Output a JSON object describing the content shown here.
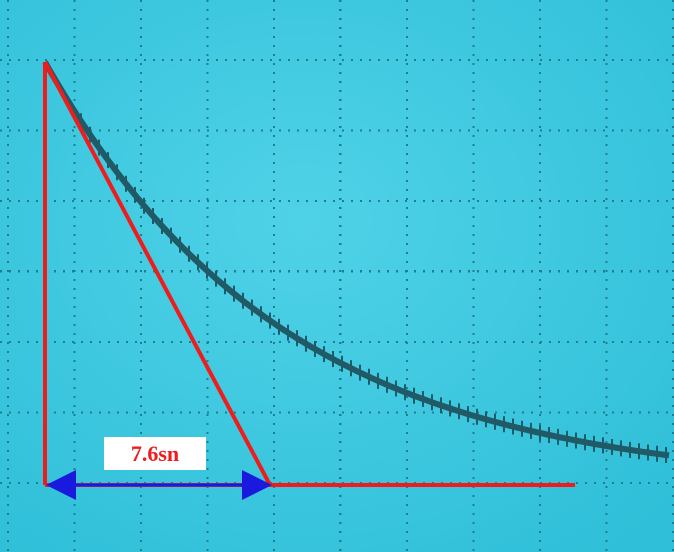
{
  "annotation": {
    "label": "7.6sn"
  }
}
